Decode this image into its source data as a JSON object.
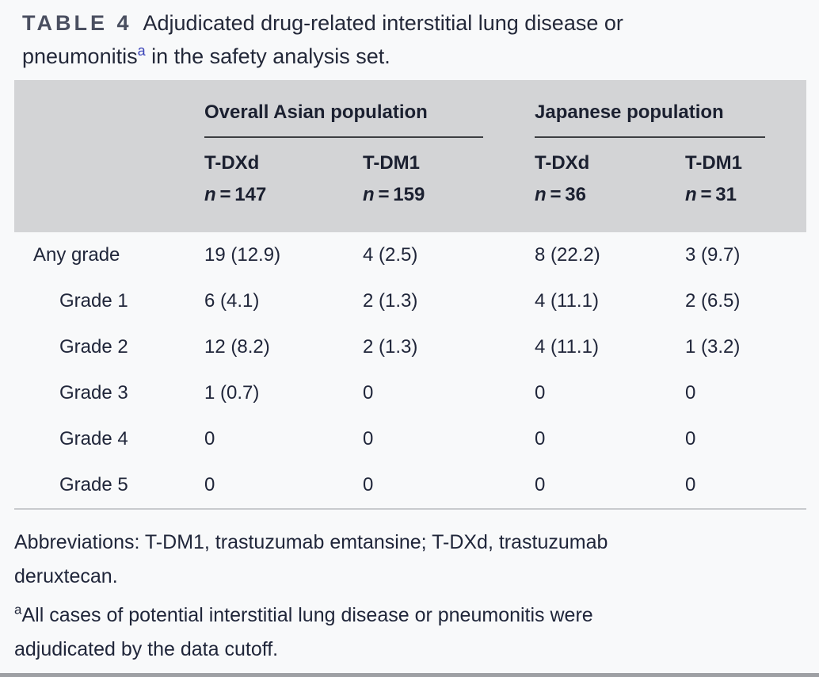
{
  "title": {
    "tag": "TABLE 4",
    "line1": "Adjudicated drug-related interstitial lung disease or",
    "line2_before_sup": "pneumonitis",
    "sup": "a",
    "line2_after_sup": " in the safety analysis set."
  },
  "table": {
    "group_headers": [
      {
        "label": "Overall Asian population"
      },
      {
        "label": "Japanese population"
      }
    ],
    "columns": [
      {
        "drug": "T-DXd",
        "n": "n",
        "n_value": " = 147"
      },
      {
        "drug": "T-DM1",
        "n": "n",
        "n_value": " = 159"
      },
      {
        "drug": "T-DXd",
        "n": "n",
        "n_value": " = 36"
      },
      {
        "drug": "T-DM1",
        "n": "n",
        "n_value": " = 31"
      }
    ],
    "rows": [
      {
        "label": "Any grade",
        "values": [
          "19 (12.9)",
          "4 (2.5)",
          "8 (22.2)",
          "3 (9.7)"
        ]
      },
      {
        "label": "Grade 1",
        "values": [
          "6 (4.1)",
          "2 (1.3)",
          "4 (11.1)",
          "2 (6.5)"
        ]
      },
      {
        "label": "Grade 2",
        "values": [
          "12 (8.2)",
          "2 (1.3)",
          "4 (11.1)",
          "1 (3.2)"
        ]
      },
      {
        "label": "Grade 3",
        "values": [
          "1 (0.7)",
          "0",
          "0",
          "0"
        ]
      },
      {
        "label": "Grade 4",
        "values": [
          "0",
          "0",
          "0",
          "0"
        ]
      },
      {
        "label": "Grade 5",
        "values": [
          "0",
          "0",
          "0",
          "0"
        ]
      }
    ]
  },
  "footnotes": {
    "abbrev_line1": "Abbreviations: T-DM1, trastuzumab emtansine; T-DXd, trastuzumab",
    "abbrev_line2": "deruxtecan.",
    "note_sup": "a",
    "note_line1": "All cases of potential interstitial lung disease or pneumonitis were",
    "note_line2": "adjudicated by the data cutoff."
  },
  "colors": {
    "header_background": "#d3d4d6",
    "title_superscript_blue": "#3b44b8",
    "text": "#20263a",
    "page_background": "#f8f9fa"
  }
}
